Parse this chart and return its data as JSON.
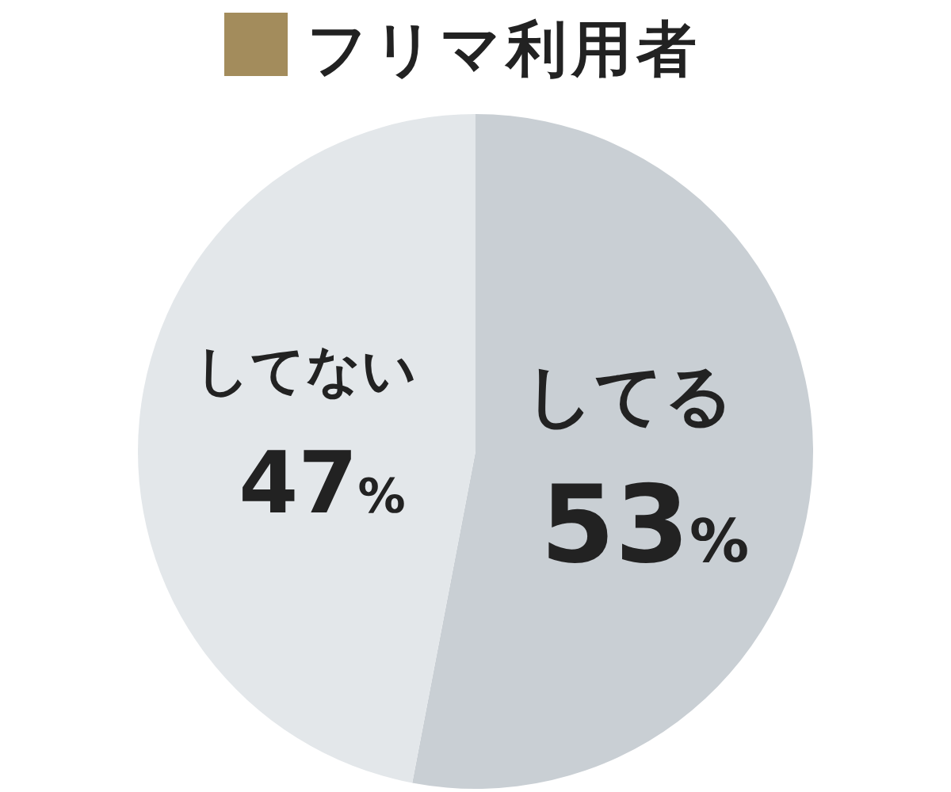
{
  "chart_data": {
    "type": "pie",
    "title": "フリマ利用者",
    "categories": [
      "してる",
      "してない"
    ],
    "values": [
      53,
      47
    ],
    "colors": [
      "#c9cfd4",
      "#e3e7ea"
    ],
    "value_labels": [
      "53%",
      "47%"
    ]
  }
}
